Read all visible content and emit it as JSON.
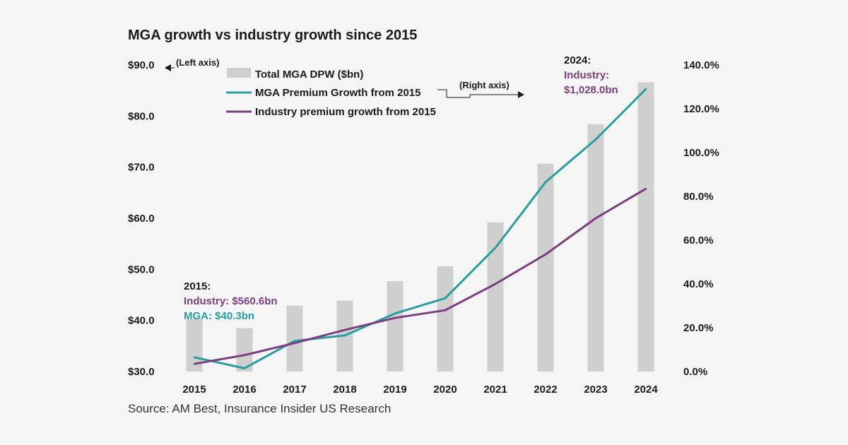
{
  "colors": {
    "background": "#f5f5f5",
    "bar": "#cfcfcf",
    "mga_line": "#2a9d9f",
    "industry_line": "#7b3f7f",
    "text": "#1a1a1a"
  },
  "chart_data": {
    "type": "bar",
    "title": "MGA growth vs industry growth since 2015",
    "categories": [
      "2015",
      "2016",
      "2017",
      "2018",
      "2019",
      "2020",
      "2021",
      "2022",
      "2023",
      "2024"
    ],
    "left_axis": {
      "ylim": [
        30,
        90
      ],
      "ticks": [
        30,
        40,
        50,
        60,
        70,
        80,
        90
      ],
      "tick_labels": [
        "$30.0",
        "$40.0",
        "$50.0",
        "$60.0",
        "$70.0",
        "$80.0",
        "$90.0"
      ],
      "note": "(Left axis)"
    },
    "right_axis": {
      "ylim": [
        0,
        140
      ],
      "ticks": [
        0,
        20,
        40,
        60,
        80,
        100,
        120,
        140
      ],
      "tick_labels": [
        "0.0%",
        "20.0%",
        "40.0%",
        "60.0%",
        "80.0%",
        "100.0%",
        "120.0%",
        "140.0%"
      ],
      "note": "(Right axis)"
    },
    "series": [
      {
        "name": "Total MGA DPW ($bn)",
        "type": "bar",
        "axis": "left",
        "values": [
          40.3,
          38.5,
          42.9,
          43.9,
          47.7,
          50.6,
          59.2,
          70.7,
          78.4,
          86.6
        ]
      },
      {
        "name": "MGA Premium Growth from 2015",
        "type": "line",
        "axis": "right",
        "values": [
          6.5,
          1.5,
          14.0,
          16.5,
          26.5,
          33.5,
          56.5,
          86.5,
          106.0,
          129.0
        ]
      },
      {
        "name": "Industry premium growth from 2015",
        "type": "line",
        "axis": "right",
        "values": [
          3.5,
          7.5,
          13.0,
          19.0,
          24.5,
          28.0,
          40.0,
          53.5,
          70.0,
          83.5
        ]
      }
    ],
    "annotations": {
      "start": {
        "year": "2015:",
        "industry": "Industry: $560.6bn",
        "mga": "MGA: $40.3bn"
      },
      "end": {
        "year": "2024:",
        "industry_label": "Industry:",
        "industry_value": "$1,028.0bn"
      }
    },
    "source": "Source: AM Best, Insurance Insider US Research"
  }
}
